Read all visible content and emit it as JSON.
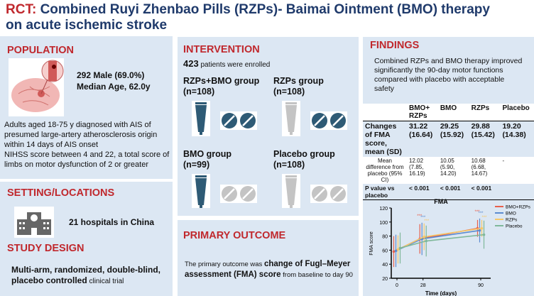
{
  "title": {
    "prefix": "RCT:",
    "line1": "Combined Ruyi Zhenbao Pills (RZPs)- Baimai Ointment (BMO) therapy",
    "line2": "on acute ischemic stroke"
  },
  "population": {
    "heading": "POPULATION",
    "male": "292 Male (69.0%)",
    "age": "Median Age, 62.0y",
    "criteria": [
      "Adults aged 18-75 y diagnosed with AIS of presumed large-artery atherosclerosis origin within 14 days of AIS onset",
      "NIHSS score between 4 and 22, a total score of limbs on motor dysfunction of 2 or greater"
    ]
  },
  "setting": {
    "heading": "SETTING/LOCATIONS",
    "text": "21 hospitals in China"
  },
  "design": {
    "heading": "STUDY DESIGN",
    "bold": "Multi-arm, randomized, double-blind, placebo controlled",
    "rest": " clinical trial"
  },
  "intervention": {
    "heading": "INTERVENTION",
    "count": "423",
    "count_text": " patients were enrolled",
    "groups": [
      {
        "name": "RZPs+BMO group",
        "n": "(n=108)"
      },
      {
        "name": "RZPs group",
        "n": "(n=108)"
      },
      {
        "name": "BMO group",
        "n": "(n=99)"
      },
      {
        "name": "Placebo group",
        "n": "(n=108)"
      }
    ]
  },
  "outcome": {
    "heading": "PRIMARY OUTCOME",
    "pre": "The primary outcome was ",
    "bold": "change of Fugl–Meyer assessment (FMA) score",
    "post": " from baseline to day 90"
  },
  "findings": {
    "heading": "FINDINGS",
    "summary": "Combined RZPs and BMO therapy improved significantly the 90-day motor functions compared with placebo with acceptable safety",
    "table": {
      "headers": [
        "",
        "BMO+ RZPs",
        "BMO",
        "RZPs",
        "Placebo"
      ],
      "rows": [
        [
          "Changes of FMA score, mean (SD)",
          "31.22 (16.64)",
          "29.25 (15.92)",
          "29.88 (15.42)",
          "19.20 (14.38)"
        ],
        [
          "Mean difference from placebo (95% CI)",
          "12.02 (7.85, 16.19)",
          "10.05 (5.90, 14.20)",
          "10.68 (6.68, 14.67)",
          "-"
        ],
        [
          "P value vs placebo",
          "< 0.001",
          "< 0.001",
          "< 0.001",
          ""
        ]
      ]
    }
  },
  "colors": {
    "accent": "#c0282d",
    "navy": "#1f3a6b",
    "panel": "#dce7f3",
    "drug": "#2e5a75",
    "placebo": "#c4c4c4"
  },
  "chart_data": {
    "type": "line",
    "title": "FMA",
    "xlabel": "Time (days)",
    "ylabel": "FMA score",
    "x": [
      0,
      28,
      90
    ],
    "xticks": [
      "0",
      "28",
      "90"
    ],
    "ylim": [
      20,
      120
    ],
    "yticks": [
      20,
      40,
      60,
      80,
      100,
      120
    ],
    "legend": "top-right",
    "significance": "***",
    "series": [
      {
        "name": "BMO+RZPs",
        "color": "#e8604c",
        "values": [
          58,
          76,
          91
        ],
        "err": [
          22,
          21,
          12
        ]
      },
      {
        "name": "BMO",
        "color": "#5b8bd0",
        "values": [
          59,
          76,
          88
        ],
        "err": [
          23,
          23,
          17
        ]
      },
      {
        "name": "RZPs",
        "color": "#f5c86a",
        "values": [
          61,
          79,
          91
        ],
        "err": [
          20,
          19,
          12
        ]
      },
      {
        "name": "Placebo",
        "color": "#7fb89a",
        "values": [
          63,
          73,
          82
        ],
        "err": [
          22,
          22,
          20
        ]
      }
    ]
  }
}
